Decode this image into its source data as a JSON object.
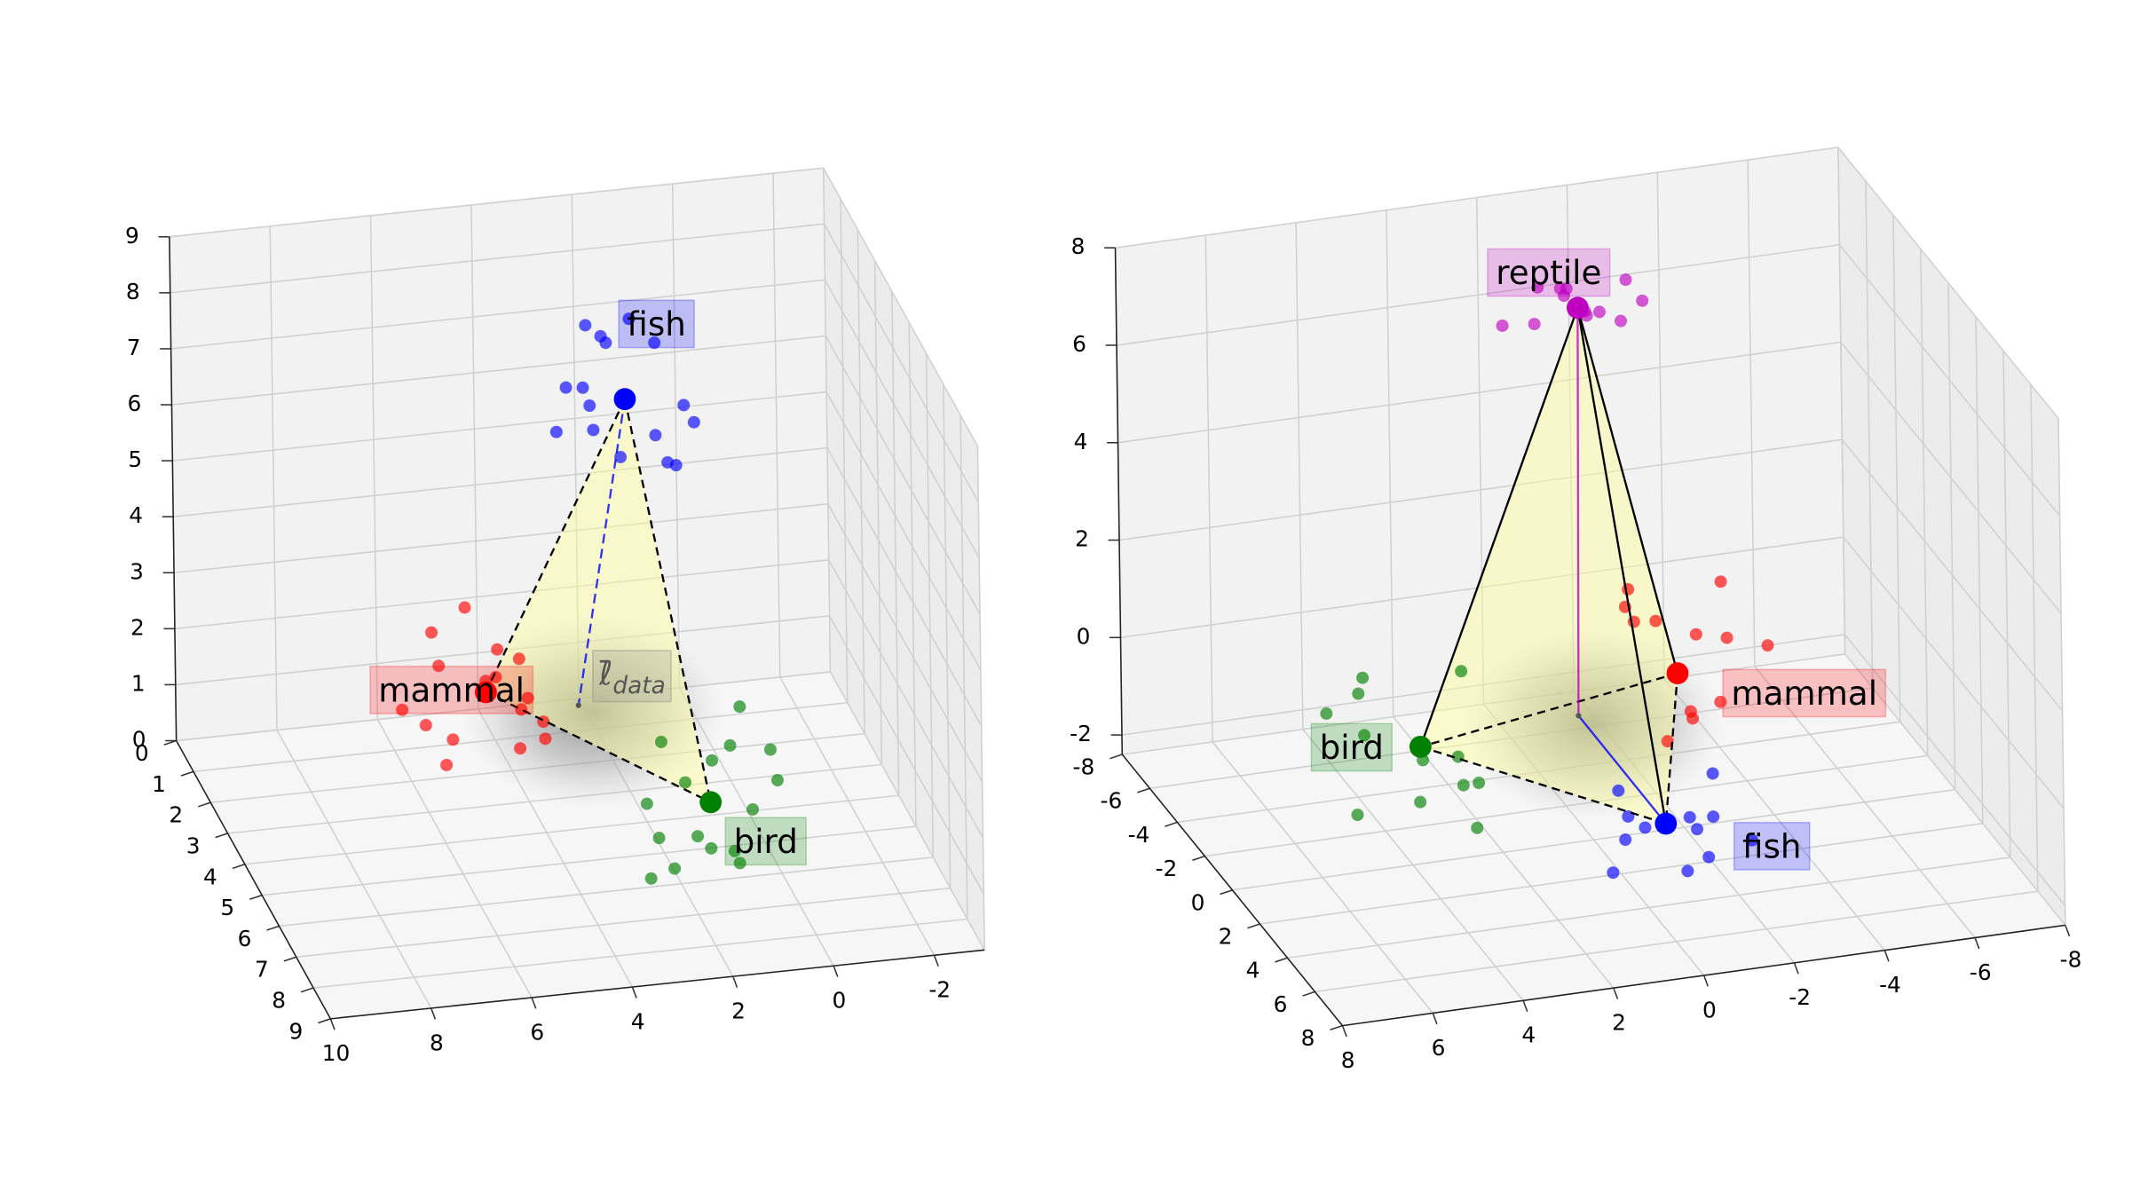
{
  "chart_data": [
    {
      "type": "simplex3d",
      "xlim": [
        -3,
        10
      ],
      "x_reversed": true,
      "ylim": [
        0,
        9
      ],
      "zlim": [
        0,
        9
      ],
      "xticks": [
        10,
        8,
        6,
        4,
        2,
        0,
        -2
      ],
      "yticks": [
        0,
        1,
        2,
        3,
        4,
        5,
        6,
        7,
        8,
        9
      ],
      "zticks": [
        0,
        1,
        2,
        3,
        4,
        5,
        6,
        7,
        8,
        9
      ],
      "grid": true,
      "mean": {
        "label": "ℓ̄",
        "label_subscript": "data",
        "x": 3.5,
        "y": 4.5,
        "z": 2.5
      },
      "series": [
        {
          "name": "fish",
          "color": "#0000ff",
          "center": {
            "x": 2,
            "y": 3,
            "z": 7
          },
          "points": {
            "x": [
              1.2,
              2.8,
              1.6,
              2.4,
              3.1,
              0.9,
              2.0,
              1.4,
              2.6,
              3.4,
              1.8,
              2.2,
              0.6,
              2.9,
              1.1,
              2.5
            ],
            "y": [
              2.4,
              3.5,
              2.1,
              3.9,
              2.8,
              3.2,
              1.9,
              3.7,
              2.5,
              3.1,
              4.2,
              2.2,
              2.9,
              3.6,
              3.3,
              2.0
            ],
            "z": [
              7.6,
              6.8,
              7.9,
              6.5,
              7.2,
              6.9,
              7.4,
              6.2,
              8.1,
              6.6,
              7.0,
              7.7,
              6.4,
              7.3,
              5.9,
              6.7
            ]
          }
        },
        {
          "name": "mammal",
          "color": "#ff0000",
          "center": {
            "x": 5.5,
            "y": 5,
            "z": 3.2
          },
          "points": {
            "x": [
              6.3,
              5.1,
              4.7,
              6.8,
              5.9,
              4.9,
              6.1,
              5.3,
              7.2,
              4.5,
              5.7,
              6.6,
              5.0,
              6.0,
              4.3,
              5.5
            ],
            "y": [
              4.2,
              5.8,
              4.6,
              5.3,
              6.2,
              3.9,
              4.8,
              6.5,
              5.1,
              5.4,
              4.4,
              5.9,
              6.0,
              3.7,
              4.9,
              5.6
            ],
            "z": [
              3.9,
              2.6,
              3.5,
              2.9,
              4.1,
              3.3,
              2.3,
              3.7,
              3.1,
              2.8,
              4.4,
              2.5,
              3.6,
              3.0,
              2.2,
              3.8
            ]
          }
        },
        {
          "name": "bird",
          "color": "#008000",
          "center": {
            "x": 1.4,
            "y": 6,
            "z": 1.4
          },
          "points": {
            "x": [
              2.1,
              0.8,
              1.6,
              0.3,
              2.5,
              1.2,
              1.9,
              0.6,
              2.8,
              1.4,
              0.9,
              2.2,
              1.0,
              1.7,
              0.2,
              2.4
            ],
            "y": [
              5.2,
              6.7,
              5.8,
              6.3,
              5.5,
              7.1,
              6.0,
              5.4,
              6.6,
              7.4,
              5.7,
              6.2,
              4.9,
              6.9,
              6.4,
              5.9
            ],
            "z": [
              2.1,
              1.6,
              0.7,
              2.4,
              1.2,
              0.9,
              1.8,
              2.7,
              0.5,
              1.3,
              2.2,
              0.4,
              1.5,
              1.1,
              1.9,
              0.8
            ]
          }
        }
      ]
    },
    {
      "type": "simplex3d",
      "xlim": [
        -8,
        8
      ],
      "x_reversed": true,
      "ylim": [
        -8,
        8
      ],
      "zlim": [
        -2.4,
        8
      ],
      "xticks": [
        8,
        6,
        4,
        2,
        0,
        -2,
        -4,
        -6,
        -8
      ],
      "yticks": [
        -8,
        -6,
        -4,
        -2,
        0,
        2,
        4,
        6,
        8
      ],
      "zticks": [
        -2,
        0,
        2,
        4,
        6,
        8
      ],
      "grid": true,
      "mean": {
        "x": 0,
        "y": -1,
        "z": -0.2
      },
      "series": [
        {
          "name": "reptile",
          "color": "#c000c0",
          "center": {
            "x": -1,
            "y": -4,
            "z": 7
          },
          "points": {
            "x": [
              -0.3,
              -1.8,
              -0.7,
              -1.4,
              0.2,
              -2.1,
              -1.0,
              -0.5,
              -1.6,
              -0.9,
              0.4,
              -2.4
            ],
            "y": [
              -4.6,
              -3.5,
              -3.8,
              -4.8,
              -3.2,
              -4.1,
              -5.0,
              -3.6,
              -4.4,
              -3.0,
              -4.9,
              -3.9
            ],
            "z": [
              7.3,
              6.8,
              7.5,
              6.6,
              7.1,
              7.4,
              6.9,
              7.6,
              6.7,
              7.2,
              6.5,
              7.0
            ]
          }
        },
        {
          "name": "mammal",
          "color": "#ff0000",
          "center": {
            "x": -2.5,
            "y": -2,
            "z": 0
          },
          "points": {
            "x": [
              -1.6,
              -3.2,
              -2.0,
              -3.6,
              -1.9,
              -2.8,
              -3.9,
              -2.3,
              -1.4,
              -3.0,
              -2.6,
              -4.2
            ],
            "y": [
              -2.8,
              -1.2,
              -3.5,
              -2.4,
              -0.8,
              -1.6,
              -3.0,
              -0.4,
              -1.9,
              -2.6,
              -3.9,
              -1.0
            ],
            "z": [
              1.2,
              -0.4,
              0.6,
              1.6,
              -0.9,
              0.9,
              0.2,
              -0.2,
              1.9,
              -1.2,
              0.4,
              0.7
            ]
          }
        },
        {
          "name": "bird",
          "color": "#008000",
          "center": {
            "x": 3.8,
            "y": 0,
            "z": 0
          },
          "points": {
            "x": [
              4.8,
              3.1,
              4.2,
              2.7,
              5.3,
              3.6,
              4.5,
              2.9,
              5.0,
              3.3,
              4.0,
              5.6
            ],
            "y": [
              -1.2,
              0.8,
              1.5,
              -0.6,
              0.3,
              2.1,
              -1.8,
              1.1,
              -0.2,
              2.6,
              0.6,
              -0.9
            ],
            "z": [
              0.8,
              -0.6,
              0.3,
              1.2,
              -1.1,
              0.5,
              -0.3,
              -1.4,
              1.5,
              0.1,
              -0.9,
              0.6
            ]
          }
        },
        {
          "name": "fish",
          "color": "#0000ff",
          "center": {
            "x": -1,
            "y": 2,
            "z": -1.5
          },
          "points": {
            "x": [
              -0.2,
              -1.7,
              -0.6,
              -1.3,
              0.3,
              -2.2,
              -0.9,
              -1.5,
              0.1,
              -2.6,
              -0.4,
              -1.9
            ],
            "y": [
              1.2,
              2.8,
              1.8,
              3.3,
              2.4,
              1.5,
              3.9,
              2.1,
              2.9,
              3.0,
              1.0,
              2.5
            ],
            "z": [
              -1.0,
              -2.0,
              -1.6,
              -1.2,
              -2.2,
              -0.8,
              -1.8,
              -1.4,
              -0.9,
              -1.7,
              -2.1,
              -1.3
            ]
          }
        }
      ]
    }
  ]
}
